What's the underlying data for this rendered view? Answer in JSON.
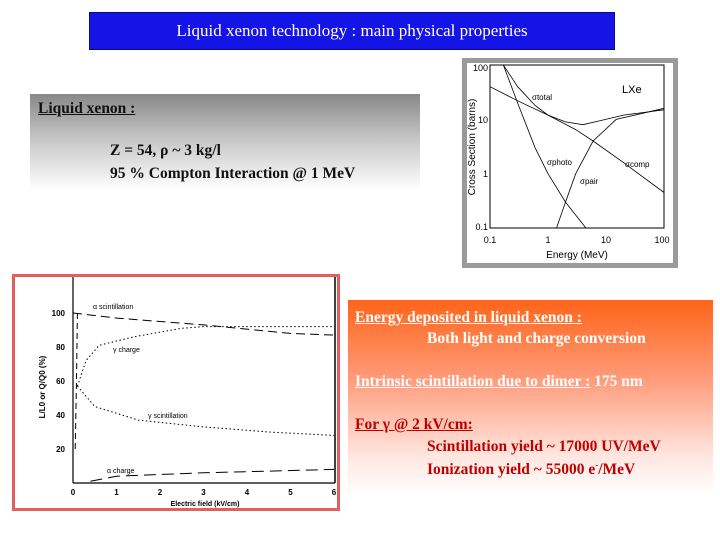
{
  "title": "Liquid xenon technology : main physical properties",
  "lxe_box": {
    "heading": "Liquid xenon :",
    "line1": "Z = 54, ρ ~ 3 kg/l",
    "line2": "95 % Compton Interaction @ 1 MeV",
    "background_top": "#888888"
  },
  "cross_section_figure": {
    "ylabel": "Cross Section (barns)",
    "xlabel": "Energy (MeV)",
    "material": "LXe",
    "x_ticks": [
      "0.1",
      "1",
      "10",
      "100"
    ],
    "y_ticks": [
      "100",
      "10",
      "1",
      "0.1"
    ],
    "curve_labels": {
      "total": "σtotal",
      "photo": "σphoto",
      "comp": "σcomp",
      "pair": "σpair"
    },
    "scale": "log-log"
  },
  "ionization_figure": {
    "ylabel": "L/L0 or Q/Q0 (%)",
    "xlabel": "Electric field (kV/cm)",
    "x_ticks": [
      "0",
      "1",
      "2",
      "3",
      "4",
      "5",
      "6"
    ],
    "y_ticks": [
      "100",
      "80",
      "60",
      "40",
      "20"
    ],
    "curve_labels": {
      "alpha_scint": "α  scintillation",
      "gamma_charge": "γ charge",
      "gamma_scint": "γ  scintillation",
      "alpha_charge": "α  charge"
    },
    "border_color": "#e06060"
  },
  "info_box": {
    "energy_heading": "Energy deposited in liquid xenon :",
    "energy_text": "Both light and charge conversion",
    "scint_heading": "Intrinsic scintillation due to dimer :",
    "scint_value": "175 nm",
    "gamma_heading": "For γ @ 2 kV/cm:",
    "scint_yield": "Scintillation yield ~ 17000 UV/MeV",
    "ion_yield_prefix": "Ionization yield ~ 55000 e",
    "ion_yield_sup": "-",
    "ion_yield_suffix": "/MeV",
    "background_top": "#ff6418",
    "accent_red": "#c00000"
  }
}
